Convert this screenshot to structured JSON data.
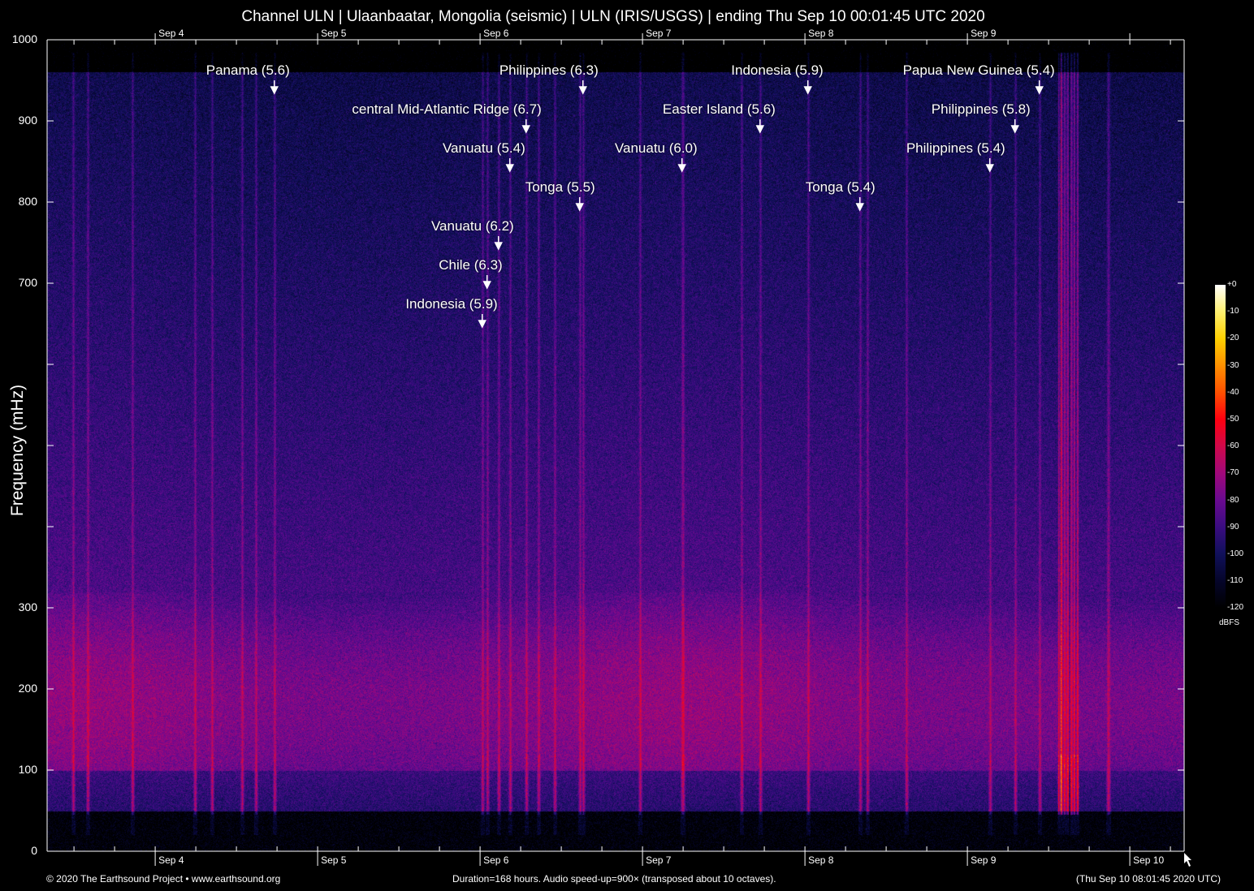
{
  "chart_data": {
    "type": "heatmap",
    "subtype": "spectrogram",
    "title": "Channel ULN | Ulaanbaatar, Mongolia (seismic) | ULN (IRIS/USGS) | ending Thu Sep 10 00:01:45 UTC 2020",
    "ylabel": "Frequency (mHz)",
    "ylim": [
      0,
      1000
    ],
    "yticks": [
      0,
      100,
      200,
      300,
      400,
      500,
      600,
      700,
      800,
      900,
      1000
    ],
    "ytick_labels": [
      "0",
      "100",
      "200",
      "300",
      "",
      "",
      "",
      "700",
      "800",
      "900",
      "1000"
    ],
    "xlim": [
      "2020-09-03T08:01:45",
      "2020-09-10T08:01:45"
    ],
    "xticks": [
      {
        "label": "Sep 4",
        "time": "2020-09-04T00:00"
      },
      {
        "label": "Sep 5",
        "time": "2020-09-05T00:00"
      },
      {
        "label": "Sep 6",
        "time": "2020-09-06T00:00"
      },
      {
        "label": "Sep 7",
        "time": "2020-09-07T00:00"
      },
      {
        "label": "Sep 8",
        "time": "2020-09-08T00:00"
      },
      {
        "label": "Sep 9",
        "time": "2020-09-09T00:00"
      },
      {
        "label": "Sep 10",
        "time": "2020-09-10T00:00"
      }
    ],
    "minor_tick_hours": 6,
    "colorbar": {
      "unit": "dBFS",
      "range": [
        -120,
        0
      ],
      "ticks": [
        "+0",
        "-10",
        "-20",
        "-30",
        "-40",
        "-50",
        "-60",
        "-70",
        "-80",
        "-90",
        "-100",
        "-110",
        "-120"
      ],
      "colors": [
        "#000000",
        "#05052a",
        "#10105a",
        "#3a0c80",
        "#6a0a90",
        "#a0087a",
        "#d0084a",
        "#ff0010",
        "#ff5000",
        "#ff9000",
        "#ffd000",
        "#fff070",
        "#ffffff"
      ]
    },
    "events": [
      {
        "label": "Panama (5.6)",
        "time": "2020-09-04T17:36"
      },
      {
        "label": "Philippines (6.3)",
        "time": "2020-09-06T15:12"
      },
      {
        "label": "central Mid-Atlantic Ridge (6.7)",
        "time": "2020-09-06T06:48"
      },
      {
        "label": "Vanuatu (5.4)",
        "time": "2020-09-06T04:24"
      },
      {
        "label": "Tonga (5.5)",
        "time": "2020-09-06T14:43"
      },
      {
        "label": "Vanuatu (6.2)",
        "time": "2020-09-06T02:43"
      },
      {
        "label": "Chile (6.3)",
        "time": "2020-09-06T01:02"
      },
      {
        "label": "Indonesia (5.9)",
        "time": "2020-09-06T00:19"
      },
      {
        "label": "Vanuatu (6.0)",
        "time": "2020-09-07T05:50"
      },
      {
        "label": "Easter Island (5.6)",
        "time": "2020-09-07T17:22"
      },
      {
        "label": "Indonesia (5.9)",
        "time": "2020-09-08T00:26"
      },
      {
        "label": "Tonga (5.4)",
        "time": "2020-09-08T08:07"
      },
      {
        "label": "Papua New Guinea (5.4)",
        "time": "2020-09-09T10:38"
      },
      {
        "label": "Philippines (5.8)",
        "time": "2020-09-09T07:02"
      },
      {
        "label": "Philippines (5.4)",
        "time": "2020-09-09T03:19"
      }
    ]
  },
  "footer": {
    "copyright": "© 2020 The Earthsound Project • www.earthsound.org",
    "info": "Duration=168 hours. Audio speed-up=900× (transposed about 10 octaves).",
    "local_time": "(Thu Sep 10 08:01:45 2020 UTC)"
  }
}
